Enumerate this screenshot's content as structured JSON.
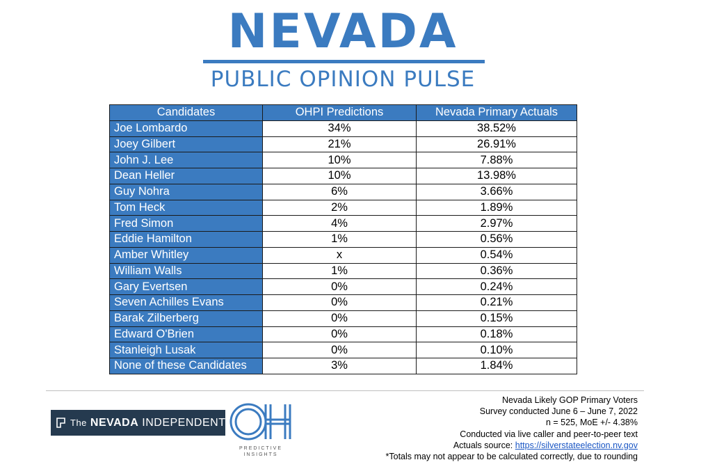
{
  "header": {
    "title": "NEVADA",
    "subtitle": "PUBLIC OPINION PULSE",
    "brand_color": "#3b7bc0"
  },
  "chart_data": {
    "type": "table",
    "columns": [
      "Candidates",
      "OHPI Predictions",
      "Nevada Primary Actuals"
    ],
    "rows": [
      {
        "candidate": "Joe Lombardo",
        "prediction": "34%",
        "actual": "38.52%"
      },
      {
        "candidate": "Joey Gilbert",
        "prediction": "21%",
        "actual": "26.91%"
      },
      {
        "candidate": "John J. Lee",
        "prediction": "10%",
        "actual": "7.88%"
      },
      {
        "candidate": "Dean Heller",
        "prediction": "10%",
        "actual": "13.98%"
      },
      {
        "candidate": "Guy Nohra",
        "prediction": "6%",
        "actual": "3.66%"
      },
      {
        "candidate": "Tom Heck",
        "prediction": "2%",
        "actual": "1.89%"
      },
      {
        "candidate": "Fred Simon",
        "prediction": "4%",
        "actual": "2.97%"
      },
      {
        "candidate": "Eddie Hamilton",
        "prediction": "1%",
        "actual": "0.56%"
      },
      {
        "candidate": "Amber Whitley",
        "prediction": "x",
        "actual": "0.54%"
      },
      {
        "candidate": "William Walls",
        "prediction": "1%",
        "actual": "0.36%"
      },
      {
        "candidate": "Gary Evertsen",
        "prediction": "0%",
        "actual": "0.24%"
      },
      {
        "candidate": "Seven Achilles Evans",
        "prediction": "0%",
        "actual": "0.21%"
      },
      {
        "candidate": "Barak Zilberberg",
        "prediction": "0%",
        "actual": "0.15%"
      },
      {
        "candidate": "Edward O'Brien",
        "prediction": "0%",
        "actual": "0.18%"
      },
      {
        "candidate": "Stanleigh Lusak",
        "prediction": "0%",
        "actual": "0.10%"
      },
      {
        "candidate": "None of these Candidates",
        "prediction": "3%",
        "actual": "1.84%"
      }
    ]
  },
  "footer": {
    "partner_logo": {
      "the": "The",
      "nevada": "NEVADA",
      "independent": "INDEPENDENT",
      "icon": "flag-icon"
    },
    "oh_logo": {
      "letters": "OH",
      "subtitle_line1": "PREDICTIVE",
      "subtitle_line2": "INSIGHTS"
    },
    "notes": {
      "line1": "Nevada Likely GOP Primary Voters",
      "line2": "Survey conducted June 6 – June 7, 2022",
      "line3": "n = 525, MoE +/- 4.38%",
      "line4": "Conducted via live caller and peer-to-peer text",
      "source_label": "Actuals source: ",
      "source_link": "https://silverstateelection.nv.gov",
      "line6": "*Totals may not appear to be calculated correctly, due to rounding"
    }
  }
}
